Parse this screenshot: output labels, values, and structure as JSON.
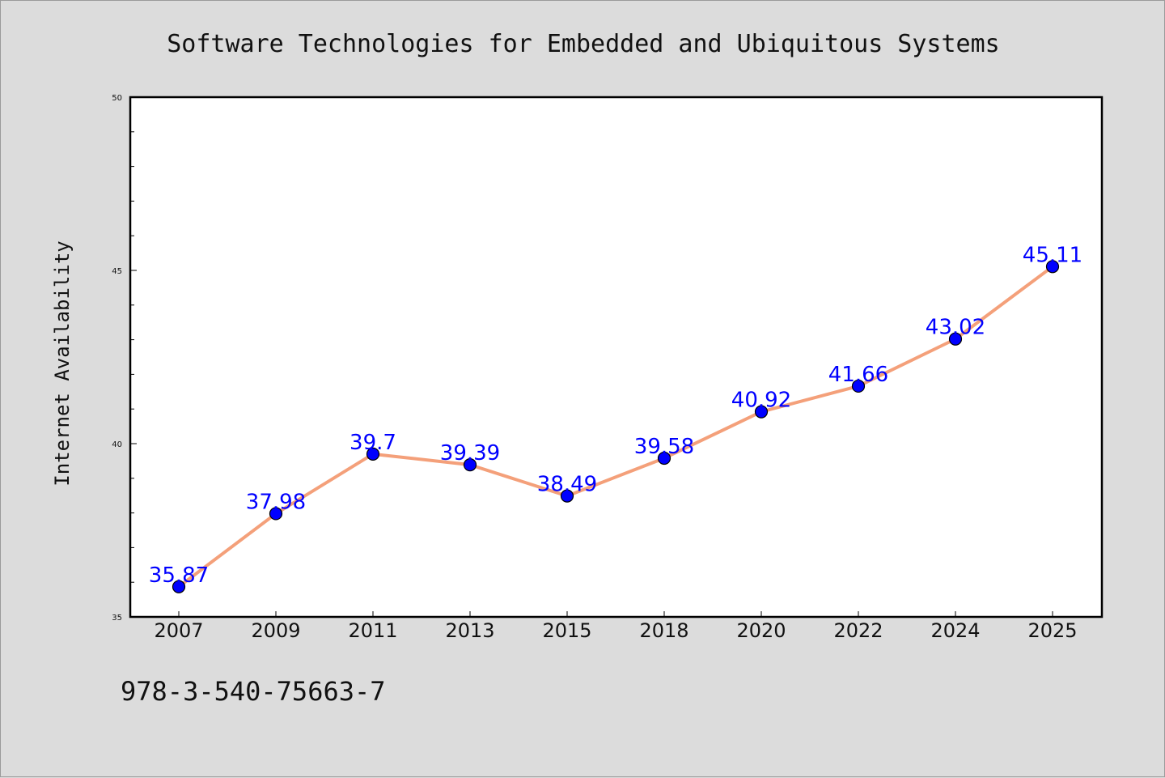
{
  "chart_data": {
    "type": "line",
    "title": "Software Technologies for Embedded and Ubiquitous Systems",
    "ylabel": "Internet Availability",
    "categories": [
      "2007",
      "2009",
      "2011",
      "2013",
      "2015",
      "2018",
      "2020",
      "2022",
      "2024",
      "2025"
    ],
    "values": [
      35.87,
      37.98,
      39.7,
      39.39,
      38.49,
      39.58,
      40.92,
      41.66,
      43.02,
      45.11
    ],
    "data_labels": [
      "35.87",
      "37.98",
      "39.7",
      "39.39",
      "38.49",
      "39.58",
      "40.92",
      "41.66",
      "43.02",
      "45.11"
    ],
    "ylim": [
      35,
      50
    ],
    "yticks": [
      "35",
      "40",
      "45",
      "50"
    ],
    "grid": false,
    "line_color": "#f4a07a",
    "marker_color": "#0000ff",
    "label_color": "#0000ff"
  },
  "footer_text": "978-3-540-75663-7"
}
